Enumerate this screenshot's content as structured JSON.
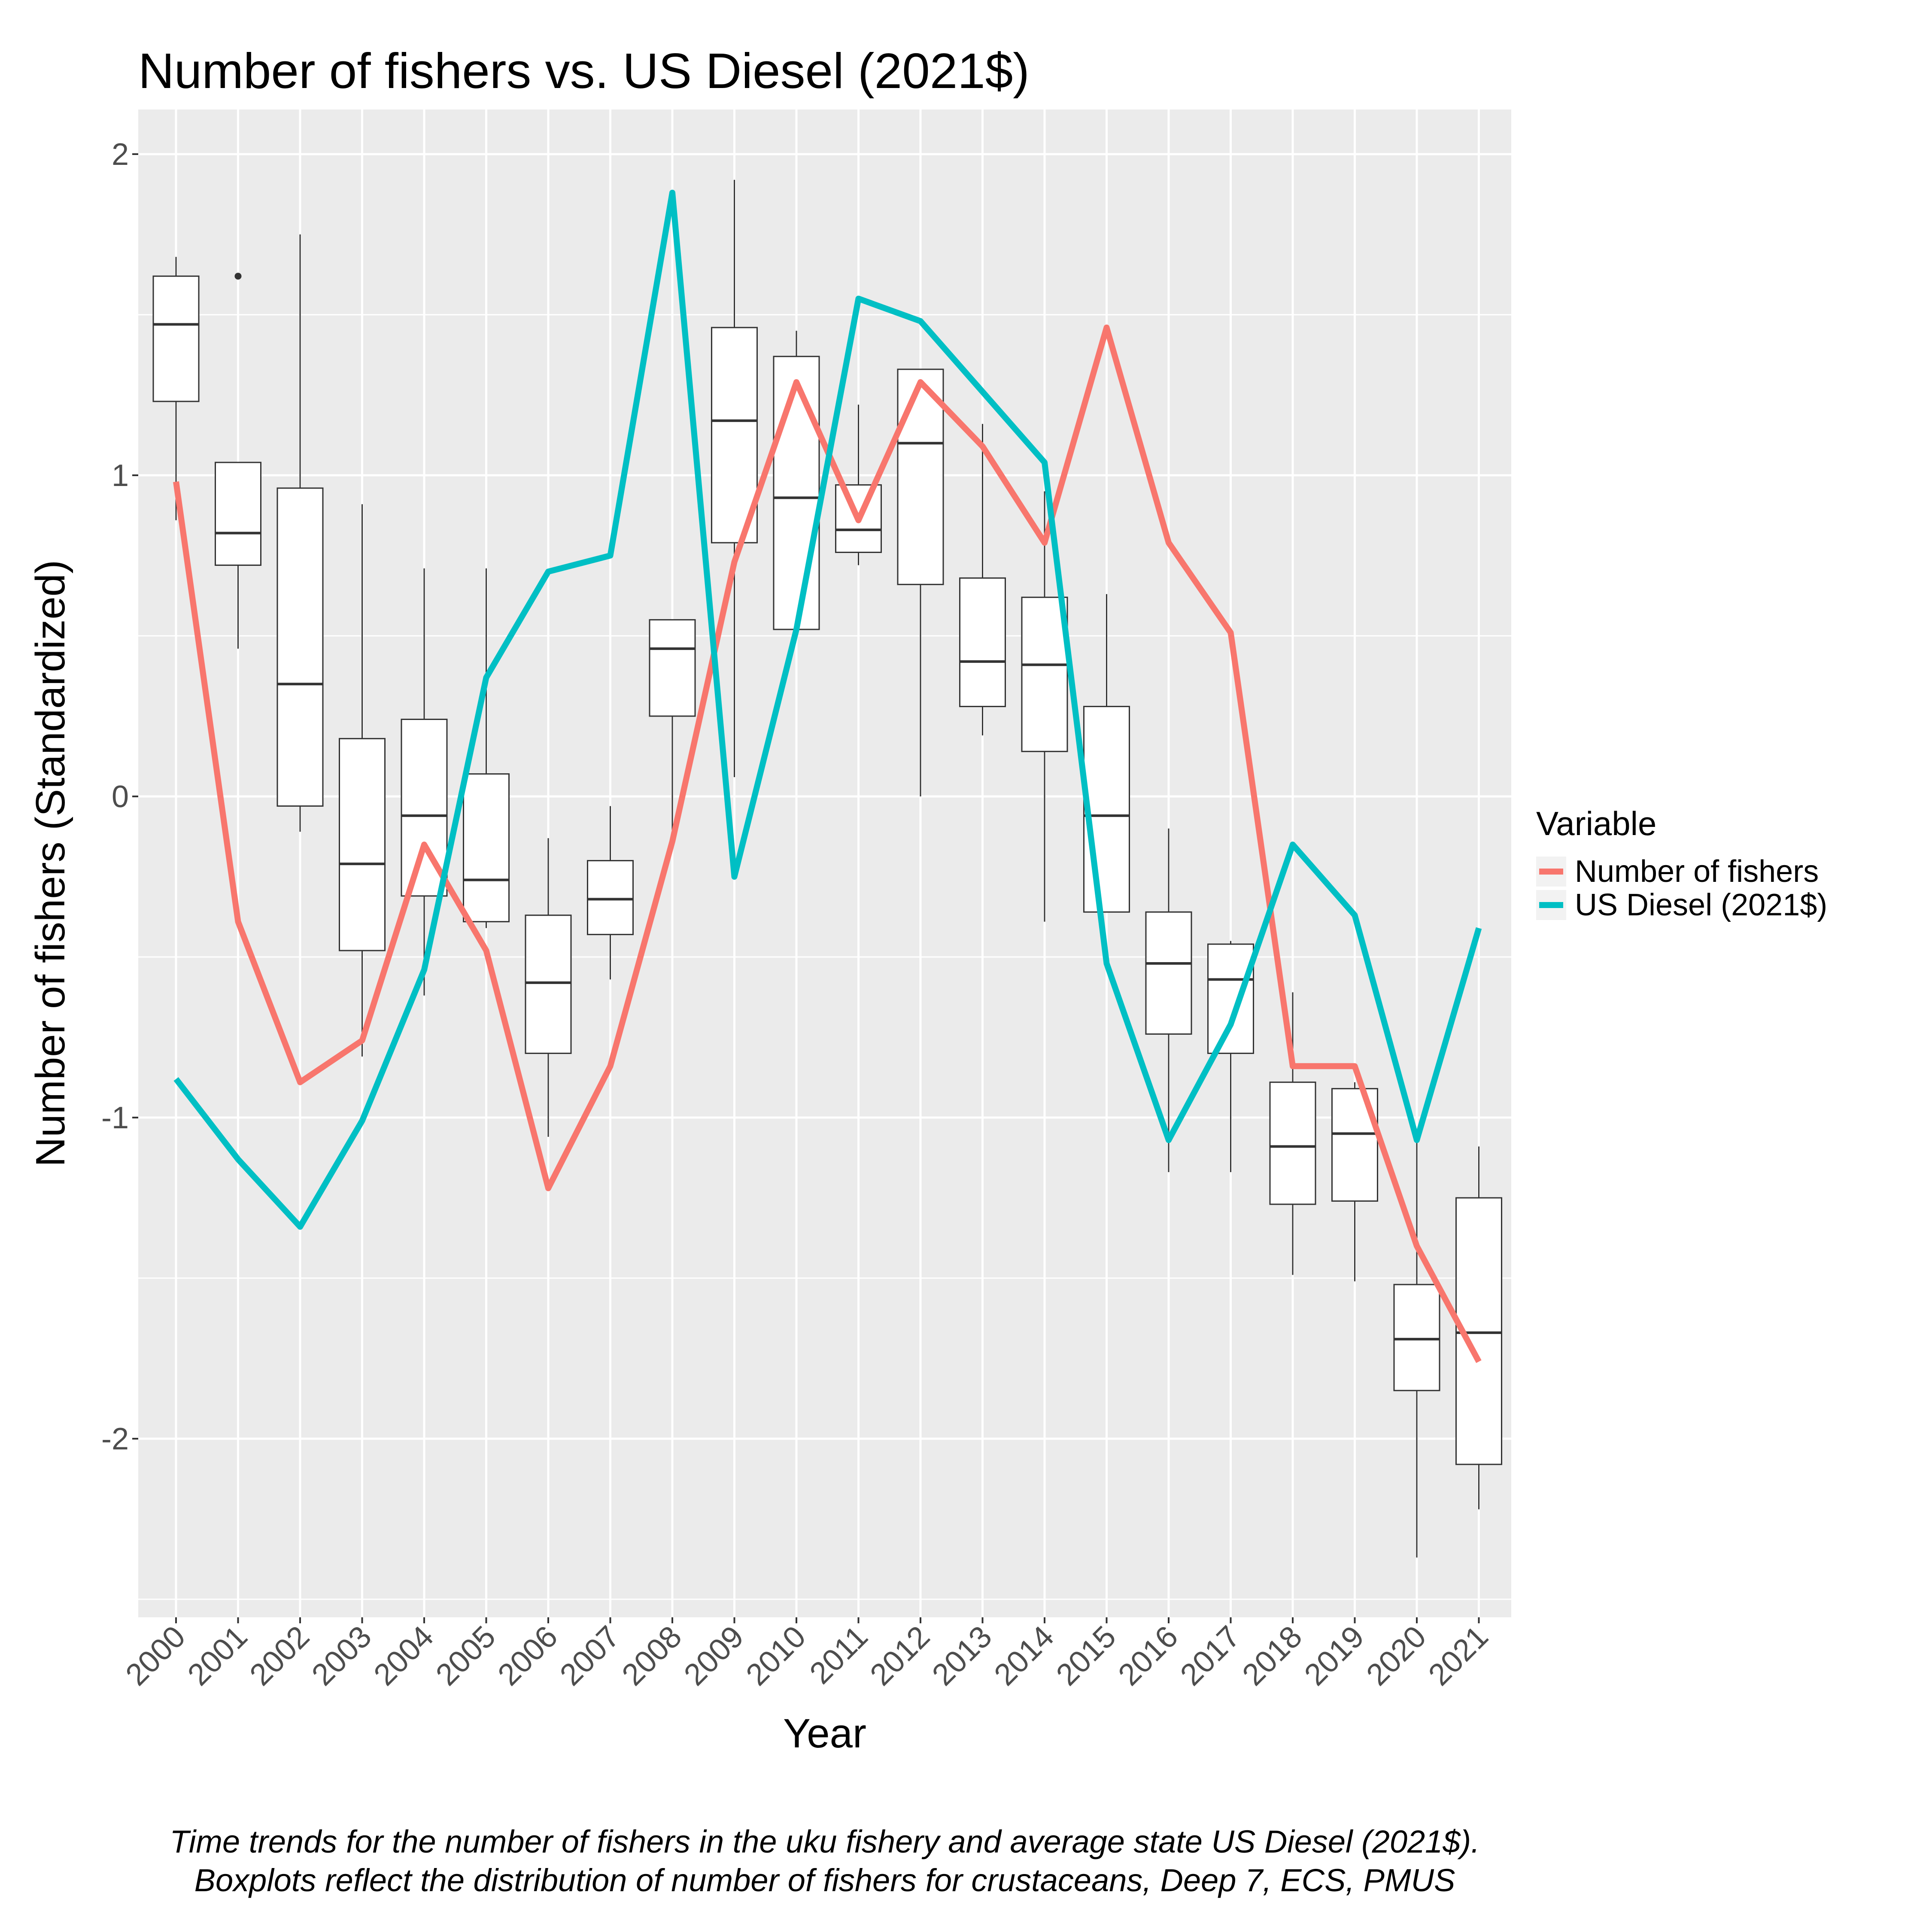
{
  "chart_data": {
    "type": "boxplot+line",
    "title": "Number of fishers vs. US Diesel (2021$)",
    "xlabel": "Year",
    "ylabel": "Number of fishers (Standardized)",
    "ylim": [
      -2.6,
      2.1
    ],
    "yticks": [
      -2,
      -1,
      0,
      1,
      2
    ],
    "grid": true,
    "legend": {
      "title": "Variable",
      "position": "right"
    },
    "categories": [
      "2000",
      "2001",
      "2002",
      "2003",
      "2004",
      "2005",
      "2006",
      "2007",
      "2008",
      "2009",
      "2010",
      "2011",
      "2012",
      "2013",
      "2014",
      "2015",
      "2016",
      "2017",
      "2018",
      "2019",
      "2020",
      "2021"
    ],
    "boxes": [
      {
        "min": 0.86,
        "q1": 1.23,
        "median": 1.47,
        "q3": 1.62,
        "max": 1.68,
        "outliers": []
      },
      {
        "min": 0.46,
        "q1": 0.72,
        "median": 0.82,
        "q3": 1.04,
        "max": 1.04,
        "outliers": [
          1.62
        ]
      },
      {
        "min": -0.11,
        "q1": -0.03,
        "median": 0.35,
        "q3": 0.96,
        "max": 1.75,
        "outliers": []
      },
      {
        "min": -0.81,
        "q1": -0.48,
        "median": -0.21,
        "q3": 0.18,
        "max": 0.91,
        "outliers": []
      },
      {
        "min": -0.62,
        "q1": -0.31,
        "median": -0.06,
        "q3": 0.24,
        "max": 0.71,
        "outliers": []
      },
      {
        "min": -0.41,
        "q1": -0.39,
        "median": -0.26,
        "q3": 0.07,
        "max": 0.71,
        "outliers": []
      },
      {
        "min": -1.06,
        "q1": -0.8,
        "median": -0.58,
        "q3": -0.37,
        "max": -0.13,
        "outliers": []
      },
      {
        "min": -0.57,
        "q1": -0.43,
        "median": -0.32,
        "q3": -0.2,
        "max": -0.03,
        "outliers": []
      },
      {
        "min": -0.13,
        "q1": 0.25,
        "median": 0.46,
        "q3": 0.55,
        "max": 0.55,
        "outliers": []
      },
      {
        "min": 0.06,
        "q1": 0.79,
        "median": 1.17,
        "q3": 1.46,
        "max": 1.92,
        "outliers": []
      },
      {
        "min": 0.52,
        "q1": 0.52,
        "median": 0.93,
        "q3": 1.37,
        "max": 1.45,
        "outliers": []
      },
      {
        "min": 0.72,
        "q1": 0.76,
        "median": 0.83,
        "q3": 0.97,
        "max": 1.22,
        "outliers": []
      },
      {
        "min": 0.0,
        "q1": 0.66,
        "median": 1.1,
        "q3": 1.33,
        "max": 1.33,
        "outliers": []
      },
      {
        "min": 0.19,
        "q1": 0.28,
        "median": 0.42,
        "q3": 0.68,
        "max": 1.16,
        "outliers": []
      },
      {
        "min": -0.39,
        "q1": 0.14,
        "median": 0.41,
        "q3": 0.62,
        "max": 0.95,
        "outliers": []
      },
      {
        "min": -0.36,
        "q1": -0.36,
        "median": -0.06,
        "q3": 0.28,
        "max": 0.63,
        "outliers": []
      },
      {
        "min": -1.17,
        "q1": -0.74,
        "median": -0.52,
        "q3": -0.36,
        "max": -0.1,
        "outliers": []
      },
      {
        "min": -1.17,
        "q1": -0.8,
        "median": -0.57,
        "q3": -0.46,
        "max": -0.45,
        "outliers": []
      },
      {
        "min": -1.49,
        "q1": -1.27,
        "median": -1.09,
        "q3": -0.89,
        "max": -0.61,
        "outliers": []
      },
      {
        "min": -1.51,
        "q1": -1.26,
        "median": -1.05,
        "q3": -0.91,
        "max": -0.89,
        "outliers": []
      },
      {
        "min": -2.37,
        "q1": -1.85,
        "median": -1.69,
        "q3": -1.52,
        "max": -1.06,
        "outliers": []
      },
      {
        "min": -2.22,
        "q1": -2.08,
        "median": -1.67,
        "q3": -1.25,
        "max": -1.09,
        "outliers": []
      }
    ],
    "series": [
      {
        "name": "Number of fishers",
        "color": "#F8766D",
        "values": [
          0.98,
          -0.39,
          -0.89,
          -0.76,
          -0.15,
          -0.48,
          -1.22,
          -0.84,
          -0.14,
          0.73,
          1.29,
          0.86,
          1.29,
          1.09,
          0.79,
          1.46,
          0.79,
          0.51,
          -0.84,
          -0.84,
          -1.4,
          -1.76
        ]
      },
      {
        "name": "US Diesel (2021$)",
        "color": "#00BFC4",
        "values": [
          -0.88,
          -1.13,
          -1.34,
          -1.01,
          -0.54,
          0.37,
          0.7,
          0.75,
          1.88,
          -0.25,
          0.52,
          1.55,
          1.48,
          1.26,
          1.04,
          -0.52,
          -1.07,
          -0.71,
          -0.15,
          -0.37,
          -1.07,
          -0.41
        ]
      }
    ],
    "caption": [
      "Time trends for the number of fishers in the uku fishery and average state US Diesel (2021$).",
      "Boxplots reflect the distribution of number of fishers for crustaceans, Deep 7, ECS, PMUS"
    ]
  }
}
